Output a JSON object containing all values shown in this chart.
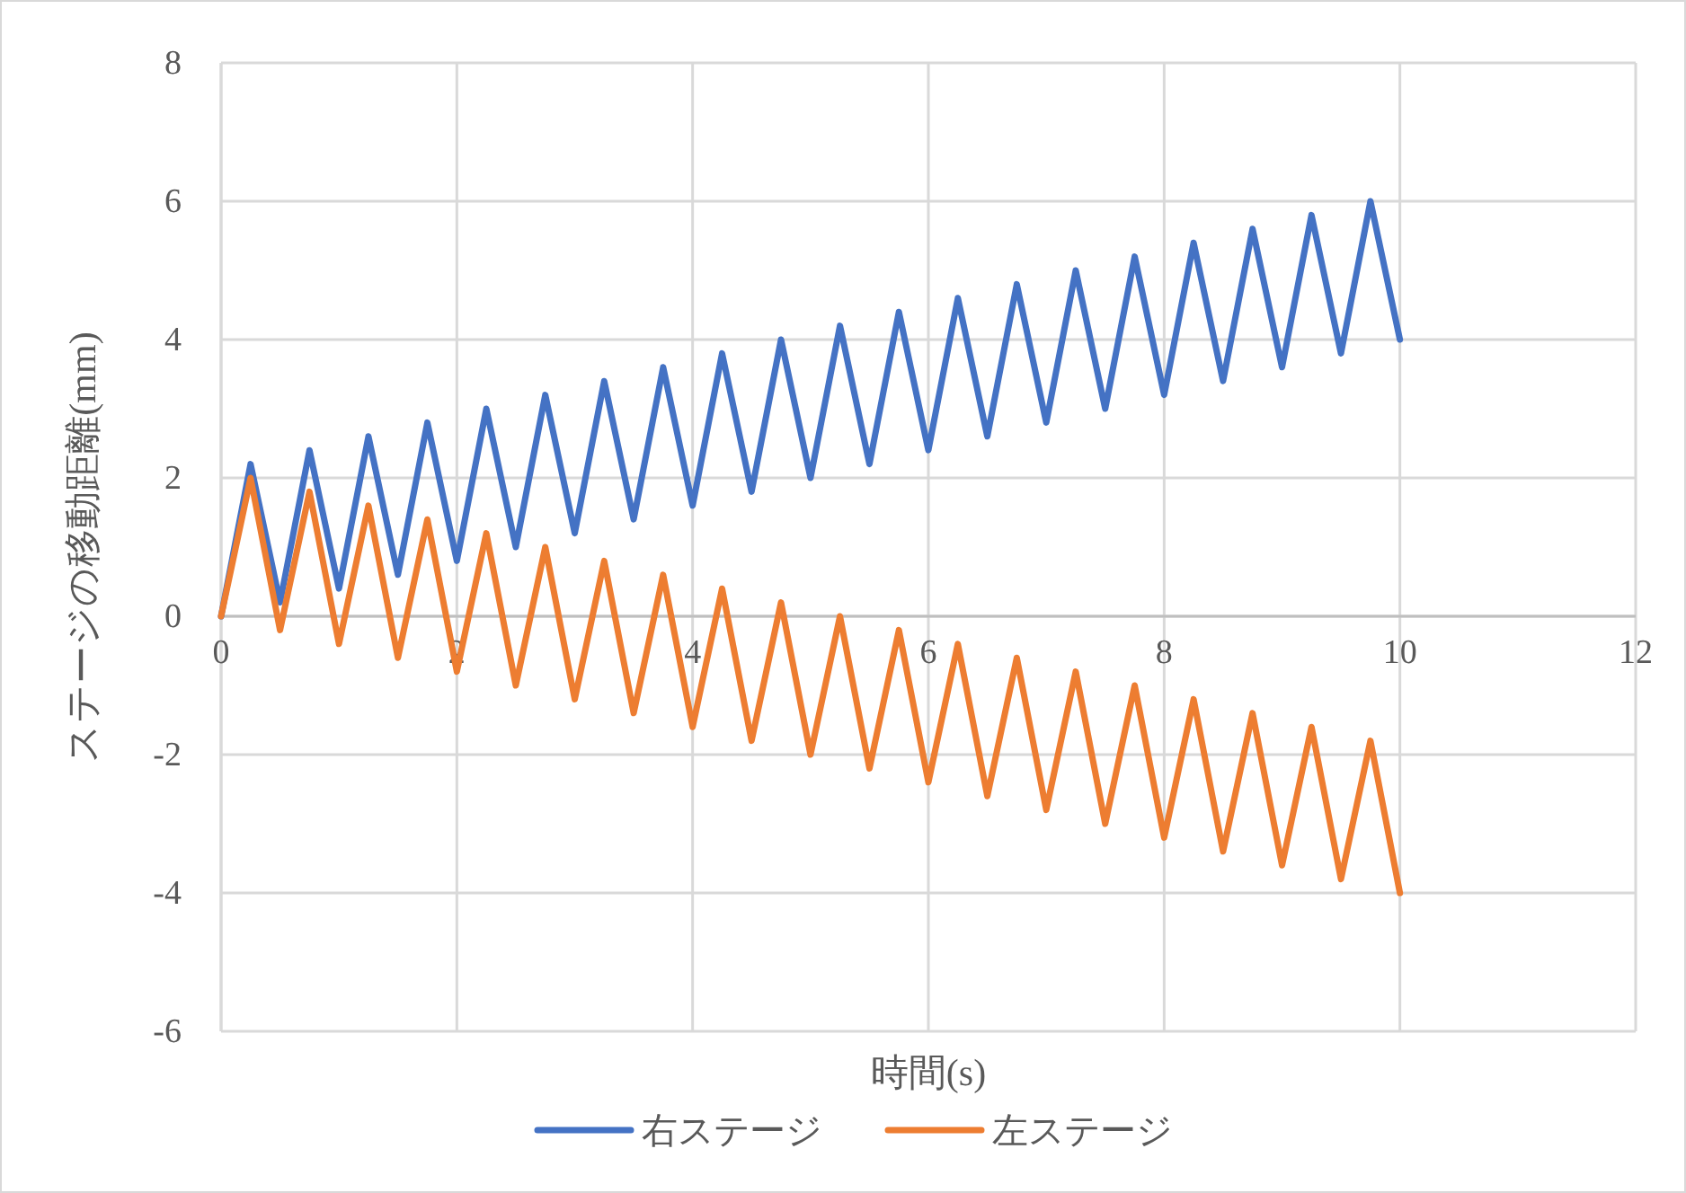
{
  "chart_data": {
    "type": "line",
    "xlabel": "時間(s)",
    "ylabel": "ステージの移動距離(mm)",
    "x": [
      0,
      0.25,
      0.5,
      0.75,
      1,
      1.25,
      1.5,
      1.75,
      2,
      2.25,
      2.5,
      2.75,
      3,
      3.25,
      3.5,
      3.75,
      4,
      4.25,
      4.5,
      4.75,
      5,
      5.25,
      5.5,
      5.75,
      6,
      6.25,
      6.5,
      6.75,
      7,
      7.25,
      7.5,
      7.75,
      8,
      8.25,
      8.5,
      8.75,
      9,
      9.25,
      9.5,
      9.75,
      10
    ],
    "series": [
      {
        "name": "右ステージ",
        "color": "#4472c4",
        "values": [
          0,
          2.2,
          0.2,
          2.4,
          0.4,
          2.6,
          0.6,
          2.8,
          0.8,
          3.0,
          1.0,
          3.2,
          1.2,
          3.4,
          1.4,
          3.6,
          1.6,
          3.8,
          1.8,
          4.0,
          2.0,
          4.2,
          2.2,
          4.4,
          2.4,
          4.6,
          2.6,
          4.8,
          2.8,
          5.0,
          3.0,
          5.2,
          3.2,
          5.4,
          3.4,
          5.6,
          3.6,
          5.8,
          3.8,
          6.0,
          4.0
        ]
      },
      {
        "name": "左ステージ",
        "color": "#ed7d31",
        "values": [
          0,
          2.0,
          -0.2,
          1.8,
          -0.4,
          1.6,
          -0.6,
          1.4,
          -0.8,
          1.2,
          -1.0,
          1.0,
          -1.2,
          0.8,
          -1.4,
          0.6,
          -1.6,
          0.4,
          -1.8,
          0.2,
          -2.0,
          0.0,
          -2.2,
          -0.2,
          -2.4,
          -0.4,
          -2.6,
          -0.6,
          -2.8,
          -0.8,
          -3.0,
          -1.0,
          -3.2,
          -1.2,
          -3.4,
          -1.4,
          -3.6,
          -1.6,
          -3.8,
          -1.8,
          -4.0
        ]
      }
    ],
    "xlim": [
      0,
      12
    ],
    "xticks": [
      0,
      2,
      4,
      6,
      8,
      10,
      12
    ],
    "ylim": [
      -6,
      8
    ],
    "yticks": [
      -6,
      -4,
      -2,
      0,
      2,
      4,
      6,
      8
    ],
    "grid": true,
    "legend": "bottom",
    "marker": "none",
    "line_style": "solid"
  }
}
